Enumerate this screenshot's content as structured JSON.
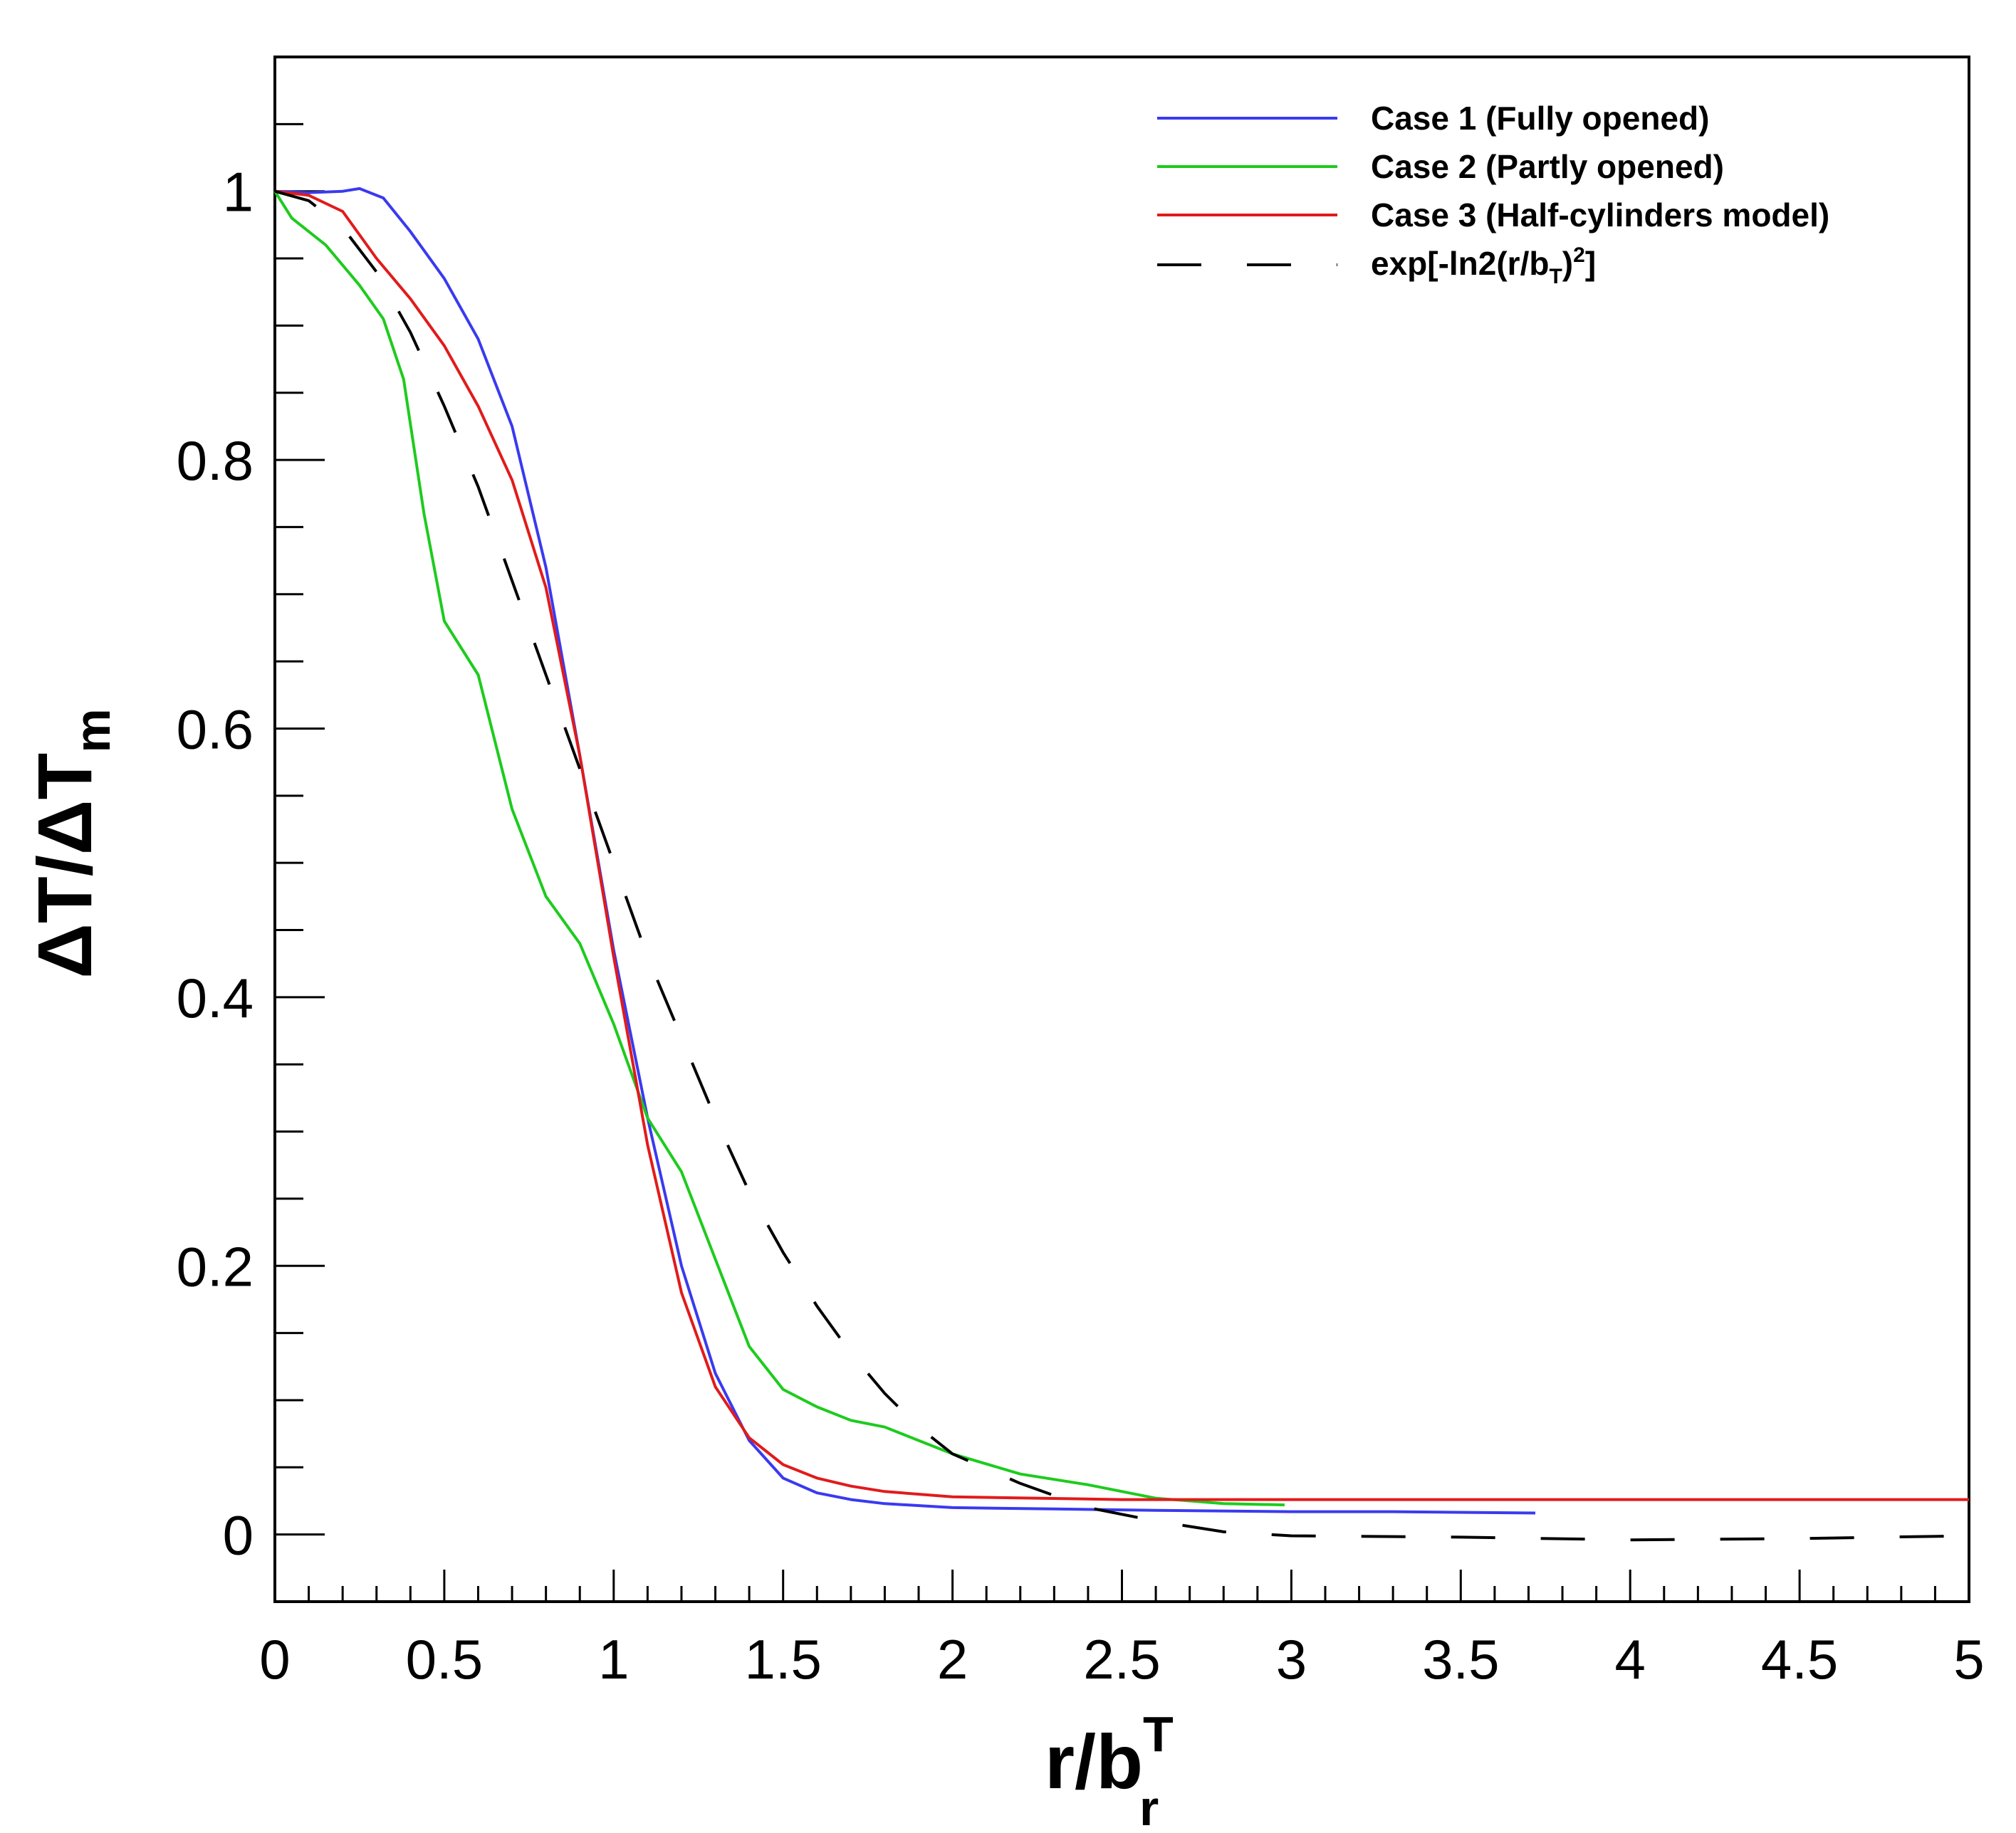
{
  "chart_data": {
    "type": "line",
    "title": "",
    "xlabel": {
      "main": "r/b",
      "sup": "T",
      "sub": "r"
    },
    "ylabel": {
      "main": "ΔT/ΔT",
      "sub": "m"
    },
    "xlim": [
      0,
      5
    ],
    "ylim": [
      -0.05,
      1.1
    ],
    "xticks": [
      0,
      0.5,
      1,
      1.5,
      2,
      2.5,
      3,
      3.5,
      4,
      4.5,
      5
    ],
    "xtick_labels": [
      "0",
      "0.5",
      "1",
      "1.5",
      "2",
      "2.5",
      "3",
      "3.5",
      "4",
      "4.5",
      "5"
    ],
    "yticks": [
      0,
      0.2,
      0.4,
      0.6,
      0.8,
      1
    ],
    "ytick_labels": [
      "0",
      "0.2",
      "0.4",
      "0.6",
      "0.8",
      "1"
    ],
    "grid": false,
    "legend_position": "top-right",
    "series": [
      {
        "name": "Case 1 (Fully opened)",
        "color": "#3a3af0",
        "dash": "solid",
        "x": [
          0,
          0.1,
          0.2,
          0.25,
          0.32,
          0.4,
          0.5,
          0.6,
          0.7,
          0.8,
          0.9,
          1.0,
          1.1,
          1.2,
          1.3,
          1.4,
          1.5,
          1.6,
          1.7,
          1.8,
          2.0,
          2.3,
          2.6,
          3.0,
          3.3,
          3.72
        ],
        "y": [
          1.0,
          0.999,
          1.0,
          1.002,
          0.995,
          0.97,
          0.935,
          0.89,
          0.825,
          0.72,
          0.58,
          0.435,
          0.31,
          0.2,
          0.12,
          0.07,
          0.042,
          0.031,
          0.026,
          0.023,
          0.02,
          0.019,
          0.018,
          0.017,
          0.017,
          0.016
        ]
      },
      {
        "name": "Case 2 (Partly opened)",
        "color": "#1ecb1e",
        "dash": "solid",
        "x": [
          0,
          0.05,
          0.15,
          0.25,
          0.32,
          0.38,
          0.44,
          0.5,
          0.6,
          0.7,
          0.8,
          0.9,
          1.0,
          1.1,
          1.2,
          1.3,
          1.4,
          1.5,
          1.6,
          1.7,
          1.8,
          1.9,
          2.0,
          2.2,
          2.4,
          2.6,
          2.8,
          2.98
        ],
        "y": [
          1.0,
          0.98,
          0.96,
          0.93,
          0.905,
          0.86,
          0.76,
          0.68,
          0.64,
          0.54,
          0.475,
          0.44,
          0.38,
          0.31,
          0.27,
          0.205,
          0.14,
          0.108,
          0.095,
          0.085,
          0.08,
          0.07,
          0.06,
          0.045,
          0.037,
          0.027,
          0.023,
          0.022
        ]
      },
      {
        "name": "Case 3 (Half-cylinders model)",
        "color": "#e11b1b",
        "dash": "solid",
        "x": [
          0,
          0.1,
          0.2,
          0.3,
          0.4,
          0.5,
          0.6,
          0.7,
          0.8,
          0.9,
          1.0,
          1.1,
          1.2,
          1.3,
          1.4,
          1.5,
          1.6,
          1.7,
          1.8,
          2.0,
          2.5,
          3.0,
          3.5,
          4.0,
          4.5,
          5.0
        ],
        "y": [
          1.0,
          0.997,
          0.985,
          0.95,
          0.92,
          0.885,
          0.84,
          0.785,
          0.705,
          0.58,
          0.43,
          0.29,
          0.18,
          0.11,
          0.072,
          0.052,
          0.042,
          0.036,
          0.032,
          0.028,
          0.026,
          0.026,
          0.026,
          0.026,
          0.026,
          0.026
        ]
      },
      {
        "name": "exp[-ln2(r/b_T)^2]",
        "color": "#000000",
        "dash": "long-dash",
        "x": [
          0,
          0.1,
          0.2,
          0.3,
          0.4,
          0.5,
          0.6,
          0.7,
          0.8,
          0.9,
          1.0,
          1.1,
          1.2,
          1.3,
          1.4,
          1.5,
          1.6,
          1.7,
          1.8,
          1.9,
          2.0,
          2.2,
          2.4,
          2.6,
          2.8,
          3.0,
          3.5,
          4.0,
          4.5,
          5.0
        ],
        "y": [
          1.0,
          0.993,
          0.973,
          0.94,
          0.895,
          0.84,
          0.78,
          0.71,
          0.64,
          0.57,
          0.5,
          0.43,
          0.37,
          0.31,
          0.255,
          0.21,
          0.17,
          0.135,
          0.105,
          0.08,
          0.06,
          0.038,
          0.02,
          0.01,
          0.002,
          -0.001,
          -0.002,
          -0.004,
          -0.003,
          -0.001
        ]
      }
    ],
    "legend_labels": {
      "case1": "Case 1 (Fully opened)",
      "case2": "Case 2 (Partly opened)",
      "case3": "Case 3 (Half-cylinders model)",
      "fit_prefix": "exp[-ln2(r/b",
      "fit_sub": "T",
      "fit_mid": ")",
      "fit_sup": "2",
      "fit_suffix": "]"
    }
  }
}
